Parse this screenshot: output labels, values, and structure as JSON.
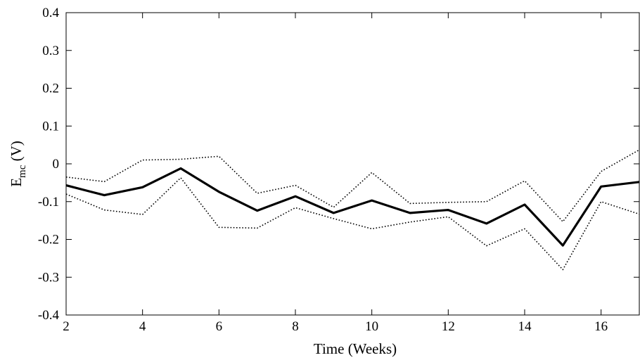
{
  "chart_data": {
    "type": "line",
    "title": "",
    "xlabel": "Time (Weeks)",
    "ylabel": {
      "base": "E",
      "subscript": "mc",
      "unit": " (V)"
    },
    "xlim": [
      2,
      17
    ],
    "ylim": [
      -0.4,
      0.4
    ],
    "xticks": [
      2,
      4,
      6,
      8,
      10,
      12,
      14,
      16
    ],
    "yticks": [
      -0.4,
      -0.3,
      -0.2,
      -0.1,
      0,
      0.1,
      0.2,
      0.3,
      0.4
    ],
    "grid": false,
    "x": [
      2,
      3,
      4,
      5,
      6,
      7,
      8,
      9,
      10,
      11,
      12,
      13,
      14,
      15,
      16,
      17
    ],
    "series": [
      {
        "style": "solid",
        "color": "#000000",
        "values": [
          -0.057,
          -0.083,
          -0.062,
          -0.012,
          -0.074,
          -0.124,
          -0.086,
          -0.13,
          -0.097,
          -0.13,
          -0.122,
          -0.158,
          -0.108,
          -0.216,
          -0.06,
          -0.048
        ]
      },
      {
        "style": "dotted",
        "color": "#000000",
        "values": [
          -0.035,
          -0.047,
          0.01,
          0.012,
          0.02,
          -0.078,
          -0.057,
          -0.115,
          -0.023,
          -0.105,
          -0.102,
          -0.1,
          -0.045,
          -0.153,
          -0.02,
          0.037
        ]
      },
      {
        "style": "dotted",
        "color": "#000000",
        "values": [
          -0.08,
          -0.122,
          -0.134,
          -0.037,
          -0.168,
          -0.17,
          -0.116,
          -0.145,
          -0.172,
          -0.154,
          -0.14,
          -0.217,
          -0.172,
          -0.28,
          -0.1,
          -0.133
        ]
      }
    ]
  }
}
